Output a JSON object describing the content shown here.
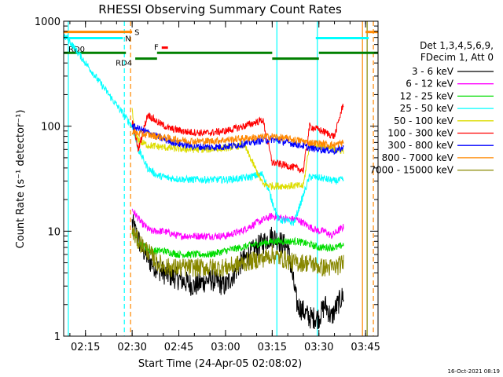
{
  "chart_data": {
    "type": "line",
    "title": "RHESSI Observing Summary Count Rates",
    "xlabel": "Start Time (24-Apr-05 02:08:02)",
    "ylabel": "Count Rate (s⁻¹ detector⁻¹)",
    "y_scale": "log",
    "ylim": [
      1,
      1000
    ],
    "xlim_minutes": [
      128,
      229
    ],
    "x_ticks": [
      {
        "label": "02:15",
        "value": 135
      },
      {
        "label": "02:30",
        "value": 150
      },
      {
        "label": "02:45",
        "value": 165
      },
      {
        "label": "03:00",
        "value": 180
      },
      {
        "label": "03:15",
        "value": 195
      },
      {
        "label": "03:30",
        "value": 210
      },
      {
        "label": "03:45",
        "value": 225
      }
    ],
    "y_ticks": [
      {
        "label": "1",
        "value": 1
      },
      {
        "label": "10",
        "value": 10
      },
      {
        "label": "100",
        "value": 100
      },
      {
        "label": "1000",
        "value": 1000
      }
    ],
    "legend_header": [
      "Det 1,3,4,5,6,9,",
      "FDecim 1, Att 0"
    ],
    "legend_position": "right",
    "series": [
      {
        "name": "3 - 6 keV",
        "color": "#000000",
        "t": [
          150,
          153,
          156,
          160,
          165,
          170,
          175,
          180,
          185,
          190,
          195,
          200,
          203,
          207,
          210,
          212,
          214,
          216,
          218
        ],
        "values": [
          12,
          7,
          5,
          4,
          3.5,
          3,
          3.5,
          3,
          5,
          7,
          9,
          7,
          2,
          1.5,
          1.5,
          2,
          1.5,
          2,
          2.5
        ]
      },
      {
        "name": "6 - 12 keV",
        "color": "#ff00ff",
        "t": [
          150,
          153,
          156,
          160,
          165,
          170,
          175,
          180,
          185,
          190,
          195,
          200,
          203,
          207,
          210,
          212,
          214,
          216,
          218
        ],
        "values": [
          16,
          12,
          10,
          10,
          9,
          9,
          9,
          9,
          10,
          12,
          14,
          13,
          13,
          11,
          10,
          10,
          9,
          10,
          11
        ]
      },
      {
        "name": "12 - 25 keV",
        "color": "#00dd00",
        "t": [
          150,
          153,
          156,
          160,
          165,
          170,
          175,
          180,
          185,
          190,
          195,
          200,
          203,
          207,
          210,
          212,
          214,
          216,
          218
        ],
        "values": [
          10,
          7.5,
          6.5,
          6.5,
          6,
          6,
          6,
          6.5,
          7,
          7.5,
          8,
          8,
          8,
          7.5,
          7,
          7,
          7,
          7,
          7.5
        ]
      },
      {
        "name": "25 - 50 keV",
        "color": "#00ffff",
        "t": [
          128,
          129,
          150,
          152,
          155,
          158,
          162,
          168,
          174,
          180,
          186,
          192,
          197,
          202,
          207,
          211,
          215,
          218
        ],
        "values": [
          700,
          700,
          100,
          60,
          40,
          34,
          32,
          31,
          31,
          31,
          32,
          35,
          13,
          12,
          33,
          32,
          30,
          31
        ]
      },
      {
        "name": "50 - 100 keV",
        "color": "#dddd00",
        "t": [
          150,
          151,
          153,
          155,
          158,
          162,
          168,
          174,
          180,
          186,
          192,
          195,
          200,
          205,
          207,
          211,
          215,
          218
        ],
        "values": [
          140,
          80,
          70,
          66,
          64,
          62,
          60,
          60,
          62,
          66,
          28,
          27,
          27,
          27,
          68,
          64,
          60,
          58
        ]
      },
      {
        "name": "100 - 300 keV",
        "color": "#ff0000",
        "t": [
          150,
          152,
          155,
          158,
          162,
          168,
          174,
          180,
          186,
          192,
          195,
          200,
          205,
          207,
          211,
          215,
          218
        ],
        "values": [
          110,
          60,
          130,
          110,
          95,
          88,
          86,
          90,
          100,
          115,
          45,
          42,
          38,
          100,
          90,
          80,
          170
        ]
      },
      {
        "name": "300 - 800 keV",
        "color": "#0000ff",
        "t": [
          150,
          152,
          156,
          160,
          165,
          170,
          175,
          180,
          185,
          190,
          195,
          200,
          205,
          207,
          211,
          215,
          218
        ],
        "values": [
          100,
          95,
          85,
          75,
          68,
          64,
          63,
          64,
          67,
          72,
          75,
          70,
          65,
          62,
          60,
          58,
          62
        ]
      },
      {
        "name": "800 - 7000 keV",
        "color": "#ff8800",
        "t": [
          150,
          152,
          156,
          160,
          165,
          170,
          175,
          180,
          185,
          190,
          195,
          200,
          205,
          207,
          211,
          215,
          218
        ],
        "values": [
          90,
          85,
          82,
          78,
          74,
          72,
          72,
          74,
          76,
          78,
          80,
          76,
          72,
          70,
          68,
          66,
          70
        ]
      },
      {
        "name": "7000 - 15000 keV",
        "color": "#888800",
        "t": [
          150,
          152,
          155,
          158,
          162,
          168,
          174,
          180,
          186,
          192,
          195,
          198,
          202,
          207,
          211,
          215,
          218
        ],
        "values": [
          10,
          8,
          6.5,
          5,
          4.5,
          4.5,
          4.5,
          4.5,
          5,
          5.5,
          6,
          5.5,
          5,
          5,
          4.5,
          4.5,
          5
        ]
      }
    ],
    "flag_bars": [
      {
        "label": "S",
        "color": "#ff8800",
        "value": 790,
        "segments": [
          [
            128,
            150
          ],
          [
            225,
            229
          ]
        ]
      },
      {
        "label": "N",
        "color": "#00ffff",
        "value": 690,
        "segments": [
          [
            128,
            147
          ],
          [
            209,
            226
          ]
        ]
      },
      {
        "label": "F",
        "color": "#ff0000",
        "value": 560,
        "segments": [
          [
            159.5,
            161.5
          ]
        ]
      },
      {
        "label": "RD0",
        "color": "#008000",
        "value": 500,
        "segments": [
          [
            128,
            148
          ],
          [
            158,
            195
          ],
          [
            210,
            229
          ]
        ]
      },
      {
        "label": "RD4",
        "color": "#008000",
        "value": 440,
        "segments": [
          [
            151,
            158
          ],
          [
            195,
            210
          ]
        ]
      }
    ],
    "vertical_lines": [
      {
        "t": 129.5,
        "color": "#00ffff",
        "style": "solid"
      },
      {
        "t": 147.5,
        "color": "#00ffff",
        "style": "dashed"
      },
      {
        "t": 149.5,
        "color": "#ff8800",
        "style": "dashed"
      },
      {
        "t": 196.5,
        "color": "#00ffff",
        "style": "solid"
      },
      {
        "t": 209.5,
        "color": "#00ffff",
        "style": "solid"
      },
      {
        "t": 224.0,
        "color": "#ff8800",
        "style": "solid"
      },
      {
        "t": 225.5,
        "color": "#888800",
        "style": "solid"
      },
      {
        "t": 227.5,
        "color": "#ff8800",
        "style": "dashed"
      }
    ],
    "grid": false
  },
  "footer": {
    "timestamp": "16-Oct-2021 08:19"
  }
}
